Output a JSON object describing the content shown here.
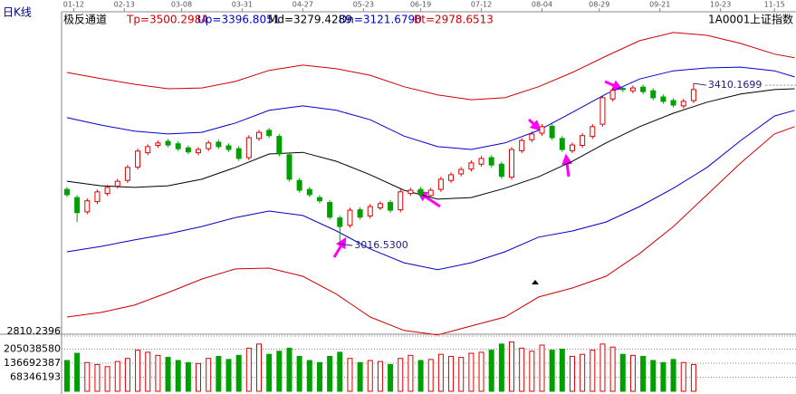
{
  "chart_data": [
    {
      "type": "candlestick",
      "title": "日K线",
      "subtitle": "极反通道",
      "symbol": "1A0001",
      "name": "上证指数",
      "up_color": "#e00000",
      "down_color": "#00a000",
      "x": [
        0,
        3,
        6,
        9,
        12,
        15,
        18,
        21,
        24,
        27,
        30,
        33,
        36,
        39,
        42,
        45,
        48,
        51,
        54,
        57,
        60,
        63,
        66,
        69,
        72,
        75,
        78,
        81,
        84,
        87,
        90,
        93,
        96,
        99,
        102,
        105,
        108,
        111,
        114,
        117,
        120,
        123,
        126,
        129,
        132,
        135,
        138,
        141,
        144,
        147,
        150,
        153,
        156,
        159,
        162,
        165,
        168,
        171,
        174,
        177,
        180,
        183,
        186
      ],
      "open": [
        3150,
        3130,
        3095,
        3120,
        3140,
        3158,
        3172,
        3205,
        3240,
        3258,
        3268,
        3262,
        3252,
        3240,
        3250,
        3266,
        3257,
        3250,
        3228,
        3275,
        3295,
        3280,
        3235,
        3172,
        3150,
        3130,
        3118,
        3080,
        3062,
        3100,
        3085,
        3105,
        3118,
        3100,
        3140,
        3150,
        3135,
        3150,
        3172,
        3188,
        3200,
        3212,
        3228,
        3212,
        3180,
        3245,
        3272,
        3288,
        3305,
        3275,
        3245,
        3258,
        3280,
        3310,
        3372,
        3398,
        3392,
        3401,
        3392,
        3377,
        3368,
        3355,
        3368
      ],
      "high": [
        3156,
        3136,
        3128,
        3150,
        3161,
        3176,
        3210,
        3250,
        3261,
        3270,
        3274,
        3268,
        3258,
        3254,
        3270,
        3272,
        3263,
        3256,
        3283,
        3296,
        3301,
        3286,
        3241,
        3178,
        3156,
        3136,
        3124,
        3086,
        3105,
        3106,
        3114,
        3121,
        3124,
        3150,
        3154,
        3156,
        3154,
        3181,
        3192,
        3205,
        3221,
        3232,
        3234,
        3218,
        3254,
        3276,
        3292,
        3310,
        3311,
        3281,
        3265,
        3288,
        3310,
        3381,
        3399,
        3404,
        3405,
        3407,
        3398,
        3383,
        3374,
        3372,
        3410.1699
      ],
      "low": [
        3131,
        3070,
        3089,
        3114,
        3134,
        3152,
        3166,
        3199,
        3234,
        3252,
        3253,
        3244,
        3236,
        3234,
        3244,
        3249,
        3242,
        3220,
        3222,
        3269,
        3276,
        3231,
        3169,
        3142,
        3131,
        3116,
        3076,
        3016.53,
        3056,
        3076,
        3079,
        3099,
        3093,
        3094,
        3134,
        3131,
        3129,
        3144,
        3166,
        3182,
        3194,
        3206,
        3204,
        3176,
        3174,
        3239,
        3266,
        3282,
        3271,
        3242,
        3239,
        3252,
        3274,
        3304,
        3366,
        3389,
        3386,
        3384,
        3369,
        3360,
        3351,
        3349,
        3362
      ],
      "close": [
        3137,
        3093,
        3122,
        3144,
        3155,
        3170,
        3204,
        3244,
        3255,
        3264,
        3259,
        3250,
        3242,
        3248,
        3264,
        3255,
        3248,
        3226,
        3277,
        3290,
        3282,
        3237,
        3175,
        3148,
        3137,
        3122,
        3082,
        3059,
        3099,
        3082,
        3108,
        3115,
        3099,
        3144,
        3148,
        3137,
        3148,
        3175,
        3186,
        3199,
        3215,
        3226,
        3210,
        3182,
        3248,
        3270,
        3286,
        3304,
        3277,
        3248,
        3259,
        3282,
        3304,
        3375,
        3393,
        3395,
        3399,
        3390,
        3375,
        3366,
        3357,
        3366,
        3395
      ],
      "xlim": [
        -1.6,
        216.4
      ],
      "xticks": [
        {
          "value": 2,
          "label": "01-12"
        },
        {
          "value": 17,
          "label": "02-13"
        },
        {
          "value": 34,
          "label": "03-08"
        },
        {
          "value": 52,
          "label": "03-31"
        },
        {
          "value": 70,
          "label": "04-27"
        },
        {
          "value": 88,
          "label": "05-23"
        },
        {
          "value": 105,
          "label": "06-19"
        },
        {
          "value": 123,
          "label": "07-12"
        },
        {
          "value": 141,
          "label": "08-04"
        },
        {
          "value": 158,
          "label": "08-29"
        },
        {
          "value": 176,
          "label": "09-21"
        },
        {
          "value": 194,
          "label": "10-23"
        },
        {
          "value": 210,
          "label": "11-15"
        }
      ],
      "ylim": [
        2810.2396,
        3597
      ],
      "yticks": [
        2810.2396
      ],
      "series": [
        {
          "name": "Tp=3500.2984",
          "color": "#d00000",
          "x": [
            0,
            10,
            20,
            30,
            40,
            50,
            60,
            70,
            80,
            90,
            100,
            110,
            120,
            130,
            140,
            150,
            160,
            170,
            180,
            190,
            200,
            210,
            216
          ],
          "values": [
            3437,
            3422,
            3408,
            3397,
            3399,
            3415,
            3442,
            3455,
            3446,
            3430,
            3402,
            3382,
            3370,
            3375,
            3402,
            3437,
            3477,
            3515,
            3535,
            3528,
            3508,
            3482,
            3473
          ]
        },
        {
          "name": "Up=3396.8051",
          "color": "#0000d0",
          "x": [
            0,
            10,
            20,
            30,
            40,
            50,
            60,
            70,
            80,
            90,
            100,
            110,
            120,
            130,
            140,
            150,
            160,
            170,
            180,
            190,
            200,
            210,
            216
          ],
          "values": [
            3326,
            3308,
            3293,
            3286,
            3290,
            3313,
            3344,
            3355,
            3344,
            3321,
            3281,
            3255,
            3248,
            3264,
            3295,
            3339,
            3384,
            3421,
            3441,
            3448,
            3450,
            3441,
            3426
          ]
        },
        {
          "name": "Md=3279.4289",
          "color": "#000000",
          "x": [
            0,
            10,
            20,
            30,
            40,
            50,
            60,
            70,
            80,
            90,
            100,
            110,
            120,
            130,
            140,
            150,
            160,
            170,
            180,
            190,
            200,
            210,
            216
          ],
          "values": [
            3170,
            3159,
            3155,
            3159,
            3175,
            3204,
            3237,
            3241,
            3219,
            3186,
            3148,
            3126,
            3130,
            3153,
            3181,
            3219,
            3264,
            3304,
            3337,
            3364,
            3384,
            3395,
            3397
          ]
        },
        {
          "name": "Dn=3121.6790",
          "color": "#0000d0",
          "x": [
            0,
            10,
            20,
            30,
            40,
            50,
            60,
            70,
            80,
            90,
            100,
            110,
            120,
            130,
            140,
            150,
            160,
            170,
            180,
            190,
            200,
            210,
            216
          ],
          "values": [
            2997,
            3010,
            3026,
            3041,
            3059,
            3081,
            3097,
            3086,
            3048,
            3004,
            2970,
            2953,
            2970,
            2997,
            3033,
            3048,
            3070,
            3108,
            3153,
            3204,
            3270,
            3330,
            3344
          ]
        },
        {
          "name": "Bt=2978.6513",
          "color": "#d00000",
          "x": [
            0,
            10,
            20,
            30,
            40,
            50,
            60,
            70,
            80,
            90,
            100,
            110,
            120,
            130,
            140,
            150,
            160,
            170,
            180,
            190,
            200,
            210,
            216
          ],
          "values": [
            2837,
            2848,
            2866,
            2897,
            2930,
            2955,
            2957,
            2937,
            2893,
            2837,
            2804,
            2793,
            2815,
            2837,
            2886,
            2908,
            2937,
            2993,
            3059,
            3137,
            3215,
            3286,
            3304
          ]
        }
      ],
      "annotations": [
        {
          "x": 186,
          "value": 3410.1699
        },
        {
          "x": 81,
          "value": 3016.53,
          "label": "3016.5300"
        }
      ]
    },
    {
      "type": "volume",
      "x": [
        0,
        3,
        6,
        9,
        12,
        15,
        18,
        21,
        24,
        27,
        30,
        33,
        36,
        39,
        42,
        45,
        48,
        51,
        54,
        57,
        60,
        63,
        66,
        69,
        72,
        75,
        78,
        81,
        84,
        87,
        90,
        93,
        96,
        99,
        102,
        105,
        108,
        111,
        114,
        117,
        120,
        123,
        126,
        129,
        132,
        135,
        138,
        141,
        144,
        147,
        150,
        153,
        156,
        159,
        162,
        165,
        168,
        171,
        174,
        177,
        180,
        183,
        186
      ],
      "values": [
        150000000,
        185000000,
        140000000,
        130000000,
        120000000,
        145000000,
        160000000,
        200000000,
        190000000,
        175000000,
        165000000,
        150000000,
        140000000,
        135000000,
        160000000,
        170000000,
        155000000,
        175000000,
        210000000,
        230000000,
        180000000,
        195000000,
        210000000,
        170000000,
        150000000,
        140000000,
        170000000,
        190000000,
        160000000,
        140000000,
        150000000,
        145000000,
        130000000,
        160000000,
        175000000,
        150000000,
        155000000,
        180000000,
        170000000,
        165000000,
        185000000,
        190000000,
        200000000,
        230000000,
        240000000,
        210000000,
        195000000,
        225000000,
        200000000,
        205000000,
        170000000,
        180000000,
        200000000,
        230000000,
        215000000,
        180000000,
        175000000,
        170000000,
        150000000,
        140000000,
        155000000,
        140000000,
        130000000
      ],
      "xlim": [
        -1.6,
        216.4
      ],
      "ylim": [
        0,
        269000000
      ],
      "yticks": [
        68346193,
        136692387,
        205038580
      ]
    }
  ]
}
